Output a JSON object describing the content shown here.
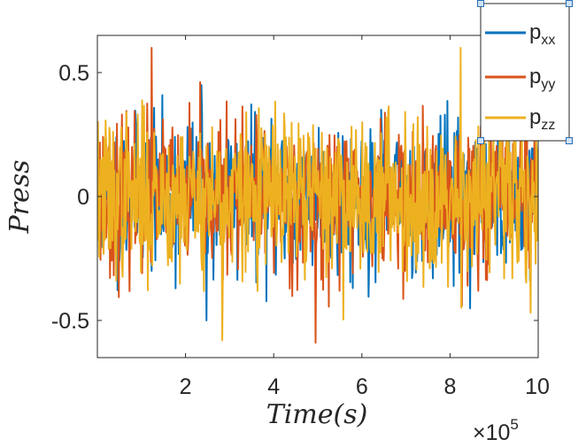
{
  "chart_data": {
    "type": "line",
    "xlabel": "Time(s)",
    "ylabel": "Press",
    "x_exponent_label": "×10",
    "x_exponent_power": "5",
    "xlim": [
      0,
      1000000
    ],
    "ylim": [
      -0.65,
      0.65
    ],
    "x_ticks": [
      200000,
      400000,
      600000,
      800000,
      1000000
    ],
    "x_tick_labels": [
      "2",
      "4",
      "6",
      "8",
      "10"
    ],
    "y_ticks": [
      0.5,
      0,
      -0.5
    ],
    "y_tick_labels": [
      "0.5",
      "0",
      "-0.5"
    ],
    "legend_position": "top-right",
    "grid": false,
    "noise_points": 700,
    "series": [
      {
        "name_base": "p",
        "name_sub": "xx",
        "color": "#0072BD",
        "amplitude": 0.15,
        "max_value": 0.45,
        "min_value": -0.5,
        "seed": 11
      },
      {
        "name_base": "p",
        "name_sub": "yy",
        "color": "#D95319",
        "amplitude": 0.15,
        "max_value": 0.6,
        "min_value": -0.59,
        "seed": 23
      },
      {
        "name_base": "p",
        "name_sub": "zz",
        "color": "#EDB120",
        "amplitude": 0.16,
        "max_value": 0.6,
        "min_value": -0.58,
        "seed": 37
      }
    ]
  }
}
